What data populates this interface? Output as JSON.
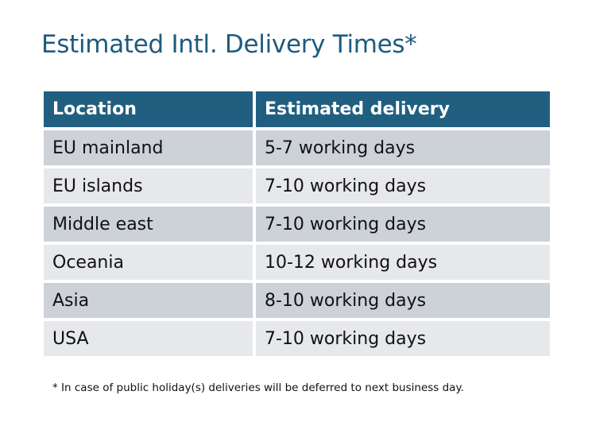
{
  "title": "Estimated Intl. Delivery Times*",
  "table": {
    "headers": [
      "Location",
      "Estimated delivery"
    ],
    "rows": [
      [
        "EU mainland",
        "5-7 working days"
      ],
      [
        "EU islands",
        "7-10 working days"
      ],
      [
        "Middle east",
        "7-10 working days"
      ],
      [
        "Oceania",
        "10-12 working days"
      ],
      [
        "Asia",
        "8-10 working days"
      ],
      [
        "USA",
        "7-10 working days"
      ]
    ]
  },
  "footnote": "* In case of public holiday(s) deliveries will be deferred to next business day.",
  "colors": {
    "header": "#215f80",
    "title": "#1f5b7e",
    "row_odd": "#cdd1d8",
    "row_even": "#e6e8eb"
  }
}
